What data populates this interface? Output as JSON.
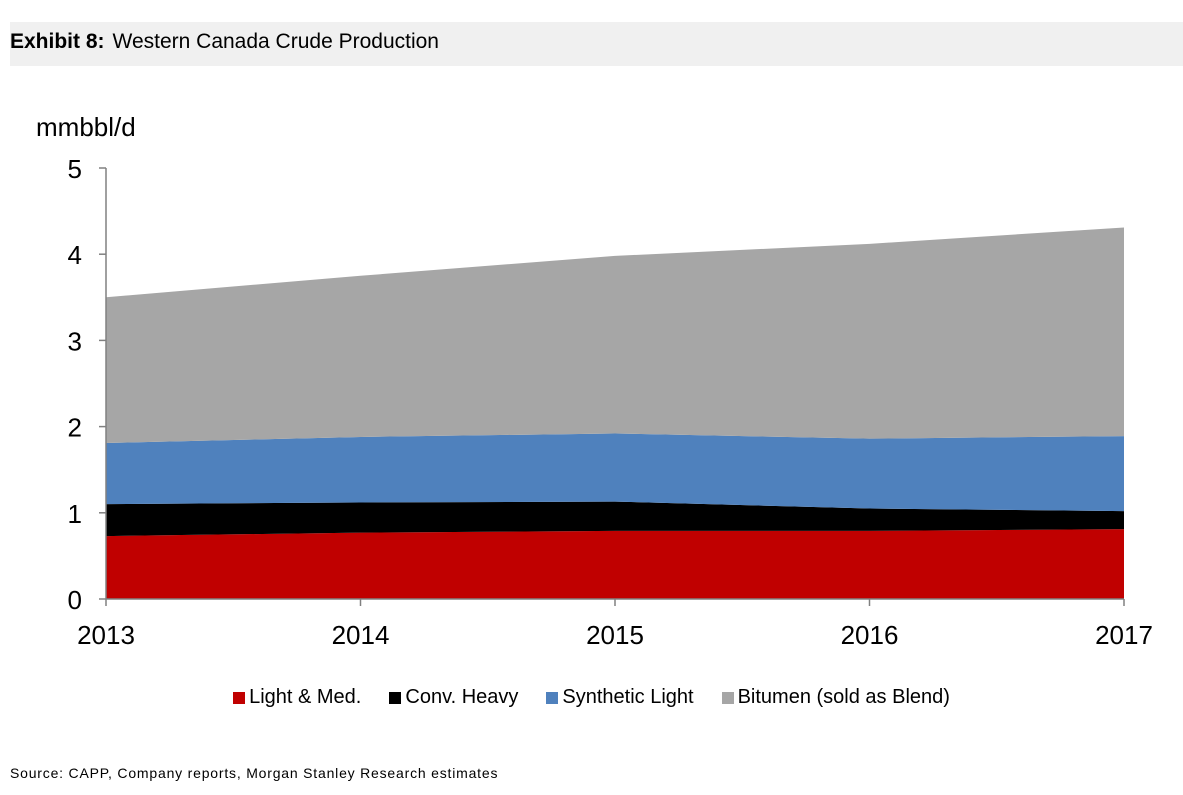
{
  "header": {
    "exhibit_label": "Exhibit 8:",
    "title": "Western Canada Crude Production"
  },
  "source": "Source: CAPP, Company reports, Morgan Stanley Research estimates",
  "chart_data": {
    "type": "area",
    "stacked": true,
    "ylabel": "mmbbl/d",
    "xlabel": "",
    "x": [
      "2013",
      "2014",
      "2015",
      "2016",
      "2017"
    ],
    "ylim": [
      0,
      5
    ],
    "yticks": [
      "0",
      "1",
      "2",
      "3",
      "4",
      "5"
    ],
    "grid": false,
    "legend_position": "bottom",
    "series": [
      {
        "name": "Light & Med.",
        "color": "#c00000",
        "values": [
          0.73,
          0.77,
          0.79,
          0.79,
          0.81
        ]
      },
      {
        "name": "Conv. Heavy",
        "color": "#000000",
        "values": [
          0.37,
          0.35,
          0.34,
          0.26,
          0.21
        ]
      },
      {
        "name": "Synthetic Light",
        "color": "#4f81bd",
        "values": [
          0.71,
          0.76,
          0.79,
          0.81,
          0.87
        ]
      },
      {
        "name": "Bitumen (sold as Blend)",
        "color": "#a6a6a6",
        "values": [
          1.69,
          1.87,
          2.06,
          2.26,
          2.42
        ]
      }
    ]
  }
}
